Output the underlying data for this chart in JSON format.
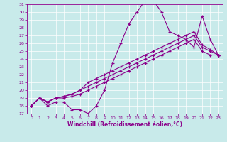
{
  "xlabel": "Windchill (Refroidissement éolien,°C)",
  "bg_color": "#c8eaea",
  "line_color": "#8b008b",
  "marker": "+",
  "xlim": [
    -0.5,
    23.5
  ],
  "ylim": [
    17,
    31
  ],
  "xticks": [
    0,
    1,
    2,
    3,
    4,
    5,
    6,
    7,
    8,
    9,
    10,
    11,
    12,
    13,
    14,
    15,
    16,
    17,
    18,
    19,
    20,
    21,
    22,
    23
  ],
  "yticks": [
    17,
    18,
    19,
    20,
    21,
    22,
    23,
    24,
    25,
    26,
    27,
    28,
    29,
    30,
    31
  ],
  "series": [
    [
      18.0,
      19.0,
      18.0,
      18.5,
      18.5,
      17.5,
      17.5,
      17.0,
      18.0,
      20.0,
      23.5,
      26.0,
      28.5,
      30.0,
      31.5,
      31.5,
      30.0,
      27.5,
      27.0,
      26.5,
      25.5,
      29.5,
      26.5,
      24.5
    ],
    [
      18.0,
      19.0,
      18.5,
      19.0,
      19.0,
      19.2,
      19.5,
      20.0,
      20.5,
      21.0,
      21.5,
      22.0,
      22.5,
      23.0,
      23.5,
      24.0,
      24.5,
      25.0,
      25.5,
      26.0,
      26.5,
      25.0,
      24.5,
      24.5
    ],
    [
      18.0,
      19.0,
      18.5,
      19.0,
      19.2,
      19.5,
      20.0,
      20.5,
      21.0,
      21.5,
      22.0,
      22.5,
      23.0,
      23.5,
      24.0,
      24.5,
      25.0,
      25.5,
      26.0,
      26.5,
      27.0,
      25.5,
      25.0,
      24.5
    ],
    [
      18.0,
      19.0,
      18.5,
      19.0,
      19.2,
      19.5,
      20.0,
      21.0,
      21.5,
      22.0,
      22.5,
      23.0,
      23.5,
      24.0,
      24.5,
      25.0,
      25.5,
      26.0,
      26.5,
      27.0,
      27.5,
      25.8,
      25.2,
      24.5
    ]
  ]
}
